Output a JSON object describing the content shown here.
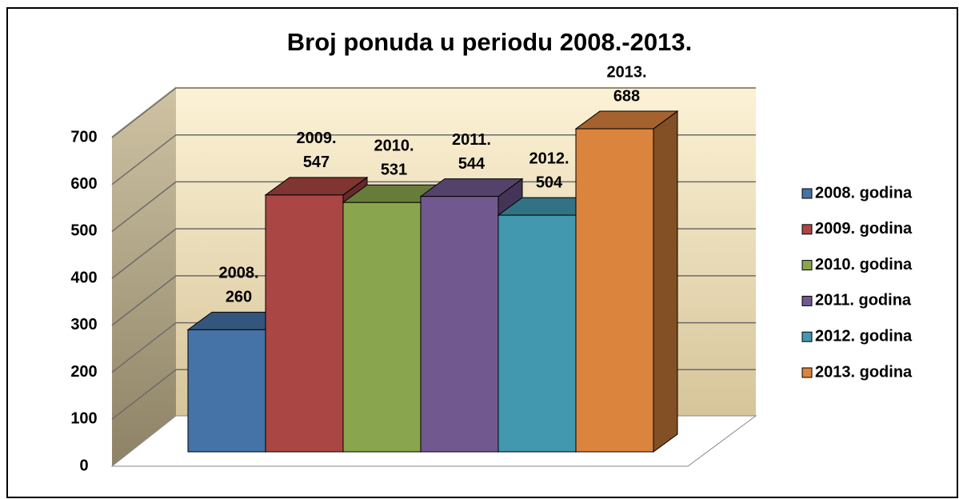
{
  "chart_data": {
    "type": "bar3d",
    "title": "Broj ponuda u periodu 2008.-2013.",
    "categories": [
      "2008.",
      "2009.",
      "2010.",
      "2011.",
      "2012.",
      "2013."
    ],
    "values": [
      260,
      547,
      531,
      544,
      504,
      688
    ],
    "colors": [
      "#4572a7",
      "#aa4643",
      "#89a54e",
      "#71588f",
      "#4198af",
      "#db843d"
    ],
    "legend": [
      "2008. godina",
      "2009. godina",
      "2010. godina",
      "2011. godina",
      "2012. godina",
      "2013. godina"
    ],
    "ylim": [
      0,
      700
    ],
    "yticks": [
      0,
      100,
      200,
      300,
      400,
      500,
      600,
      700
    ],
    "grid": true
  }
}
